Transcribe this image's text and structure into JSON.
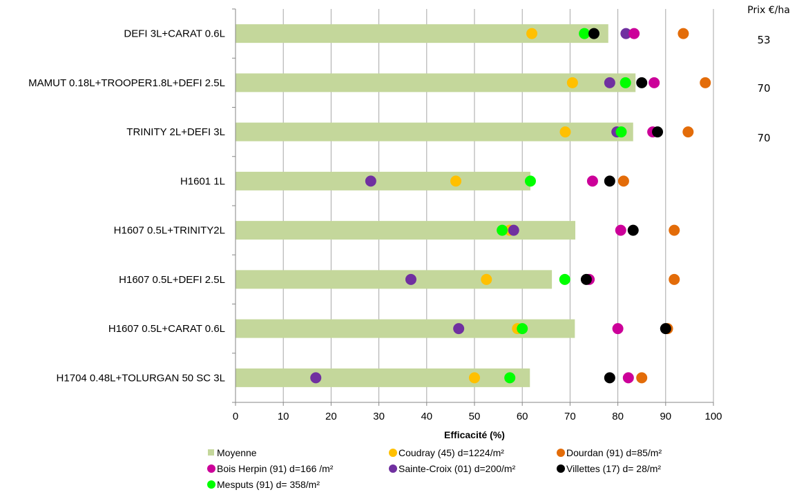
{
  "chart_data": {
    "type": "bar",
    "orientation": "horizontal",
    "title": "",
    "xlabel": "Efficacité (%)",
    "ylabel": "",
    "xlim": [
      0,
      100
    ],
    "xticks": [
      0,
      10,
      20,
      30,
      40,
      50,
      60,
      70,
      80,
      90,
      100
    ],
    "grid": "vertical",
    "legend_position": "bottom",
    "categories": [
      "DEFI 3L+CARAT 0.6L",
      "MAMUT 0.18L+TROOPER1.8L+DEFI 2.5L",
      "TRINITY 2L+DEFI 3L",
      "H1601 1L",
      "H1607 0.5L+TRINITY2L",
      "H1607 0.5L+DEFI 2.5L",
      "H1607 0.5L+CARAT 0.6L",
      "H1704 0.48L+TOLURGAN 50 SC 3L"
    ],
    "bar_series": {
      "name": "Moyenne",
      "color": "#c4d79b",
      "values": [
        78,
        83.7,
        83.2,
        61.7,
        71.1,
        66.2,
        71,
        61.6
      ]
    },
    "series": [
      {
        "name": "Coudray (45) d=1224/m²",
        "color": "#ffc000",
        "marker": "circle",
        "values": [
          62,
          70.5,
          69,
          46.1,
          57.4,
          52.5,
          59,
          50
        ]
      },
      {
        "name": "Dourdan (91) d=85/m²",
        "color": "#e36c09",
        "marker": "circle",
        "values": [
          93.7,
          98.3,
          94.7,
          81.2,
          91.8,
          91.8,
          90.4,
          85
        ]
      },
      {
        "name": "Bois Herpin (91) d=166 /m²",
        "color": "#cc0099",
        "marker": "circle",
        "values": [
          83.4,
          87.6,
          87.3,
          74.7,
          80.6,
          74,
          80,
          82.2
        ]
      },
      {
        "name": "Sainte-Croix (01) d=200/m²",
        "color": "#7030a0",
        "marker": "circle",
        "values": [
          81.7,
          78.3,
          79.8,
          28.3,
          58.2,
          36.7,
          46.7,
          16.8
        ]
      },
      {
        "name": "Villettes (17) d= 28/m²",
        "color": "#000000",
        "marker": "circle",
        "values": [
          75,
          85,
          88.3,
          78.3,
          83.2,
          73.4,
          90,
          78.3
        ]
      },
      {
        "name": "Mesputs (91) d= 358/m²",
        "color": "#00ff00",
        "marker": "circle",
        "values": [
          73,
          81.6,
          80.7,
          61.7,
          55.8,
          68.9,
          60,
          57.4
        ]
      }
    ],
    "side_annotations": {
      "header": "Prix €/ha",
      "values": [
        "53",
        "70",
        "70"
      ]
    },
    "legend": [
      {
        "label": "Moyenne",
        "color": "#c4d79b",
        "marker": "square"
      },
      {
        "label": "Coudray (45) d=1224/m²",
        "color": "#ffc000",
        "marker": "circle"
      },
      {
        "label": "Dourdan (91) d=85/m²",
        "color": "#e36c09",
        "marker": "circle"
      },
      {
        "label": "Bois Herpin (91) d=166 /m²",
        "color": "#cc0099",
        "marker": "circle"
      },
      {
        "label": "Sainte-Croix (01) d=200/m²",
        "color": "#7030a0",
        "marker": "circle"
      },
      {
        "label": "Villettes (17) d= 28/m²",
        "color": "#000000",
        "marker": "circle"
      },
      {
        "label": "Mesputs (91) d= 358/m²",
        "color": "#00ff00",
        "marker": "circle"
      }
    ]
  }
}
